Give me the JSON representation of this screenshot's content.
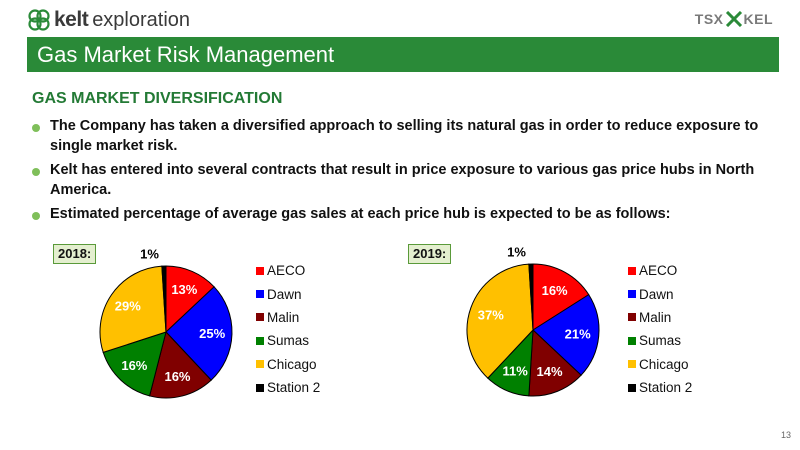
{
  "header": {
    "brand": "kelt",
    "brand_sub": "exploration",
    "ticker_left": "TSX",
    "ticker_right": "KEL"
  },
  "slide": {
    "title": "Gas Market Risk Management",
    "section_title": "GAS MARKET DIVERSIFICATION",
    "bullets": [
      "The Company has taken a diversified approach to selling its natural gas in order to reduce exposure to single market risk.",
      "Kelt has entered into several contracts that result in price exposure to various gas price hubs in North America.",
      "Estimated percentage of average gas sales at each price hub is expected to be as follows:"
    ],
    "page_number": "13"
  },
  "chart_data": [
    {
      "type": "pie",
      "title": "2018:",
      "categories": [
        "AECO",
        "Dawn",
        "Malin",
        "Sumas",
        "Chicago",
        "Station 2"
      ],
      "values": [
        13,
        25,
        16,
        16,
        29,
        1
      ],
      "labels": [
        "13%",
        "25%",
        "16%",
        "16%",
        "29%",
        "1%"
      ],
      "colors": [
        "#ff0000",
        "#0000ff",
        "#800000",
        "#008000",
        "#ffc000",
        "#000000"
      ],
      "label_colors": [
        "#ffffff",
        "#ffffff",
        "#ffffff",
        "#ffffff",
        "#ffffff",
        "#000000"
      ],
      "legend_position": "right"
    },
    {
      "type": "pie",
      "title": "2019:",
      "categories": [
        "AECO",
        "Dawn",
        "Malin",
        "Sumas",
        "Chicago",
        "Station 2"
      ],
      "values": [
        16,
        21,
        14,
        11,
        37,
        1
      ],
      "labels": [
        "16%",
        "21%",
        "14%",
        "11%",
        "37%",
        "1%"
      ],
      "colors": [
        "#ff0000",
        "#0000ff",
        "#800000",
        "#008000",
        "#ffc000",
        "#000000"
      ],
      "label_colors": [
        "#ffffff",
        "#ffffff",
        "#ffffff",
        "#ffffff",
        "#ffffff",
        "#000000"
      ],
      "legend_position": "right"
    }
  ]
}
